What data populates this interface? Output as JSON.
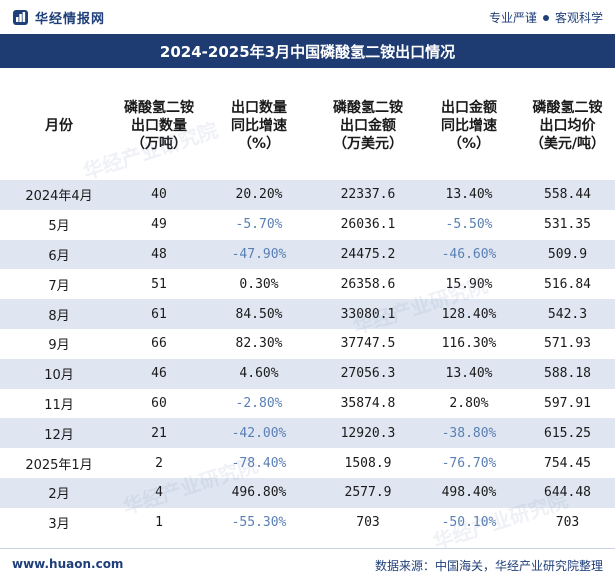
{
  "header": {
    "brand_name": "华经情报网",
    "tag_left": "专业严谨",
    "tag_right": "客观科学",
    "title": "2024-2025年3月中国磷酸氢二铵出口情况"
  },
  "columns": [
    "月份",
    "磷酸氢二铵\n出口数量\n（万吨）",
    "出口数量\n同比增速\n（%）",
    "磷酸氢二铵\n出口金额\n（万美元）",
    "出口金额\n同比增速\n（%）",
    "磷酸氢二铵\n出口均价\n（美元/吨）"
  ],
  "rows": [
    {
      "month": "2024年4月",
      "qty": "40",
      "qty_yoy": "20.20%",
      "amount": "22337.6",
      "amount_yoy": "13.40%",
      "price": "558.44"
    },
    {
      "month": "5月",
      "qty": "49",
      "qty_yoy": "-5.70%",
      "amount": "26036.1",
      "amount_yoy": "-5.50%",
      "price": "531.35"
    },
    {
      "month": "6月",
      "qty": "48",
      "qty_yoy": "-47.90%",
      "amount": "24475.2",
      "amount_yoy": "-46.60%",
      "price": "509.9"
    },
    {
      "month": "7月",
      "qty": "51",
      "qty_yoy": "0.30%",
      "amount": "26358.6",
      "amount_yoy": "15.90%",
      "price": "516.84"
    },
    {
      "month": "8月",
      "qty": "61",
      "qty_yoy": "84.50%",
      "amount": "33080.1",
      "amount_yoy": "128.40%",
      "price": "542.3"
    },
    {
      "month": "9月",
      "qty": "66",
      "qty_yoy": "82.30%",
      "amount": "37747.5",
      "amount_yoy": "116.30%",
      "price": "571.93"
    },
    {
      "month": "10月",
      "qty": "46",
      "qty_yoy": "4.60%",
      "amount": "27056.3",
      "amount_yoy": "13.40%",
      "price": "588.18"
    },
    {
      "month": "11月",
      "qty": "60",
      "qty_yoy": "-2.80%",
      "amount": "35874.8",
      "amount_yoy": "2.80%",
      "price": "597.91"
    },
    {
      "month": "12月",
      "qty": "21",
      "qty_yoy": "-42.00%",
      "amount": "12920.3",
      "amount_yoy": "-38.80%",
      "price": "615.25"
    },
    {
      "month": "2025年1月",
      "qty": "2",
      "qty_yoy": "-78.40%",
      "amount": "1508.9",
      "amount_yoy": "-76.70%",
      "price": "754.45"
    },
    {
      "month": "2月",
      "qty": "4",
      "qty_yoy": "496.80%",
      "amount": "2577.9",
      "amount_yoy": "498.40%",
      "price": "644.48"
    },
    {
      "month": "3月",
      "qty": "1",
      "qty_yoy": "-55.30%",
      "amount": "703",
      "amount_yoy": "-50.10%",
      "price": "703"
    }
  ],
  "footer": {
    "url": "www.huaon.com",
    "source": "数据来源：中国海关，华经产业研究院整理"
  },
  "watermark_text": "华经产业研究院",
  "colors": {
    "title_bg": "#1e3c72",
    "stripe": "#dfe6f1",
    "negative": "#5a7fb5",
    "brand": "#1f3f7a"
  }
}
